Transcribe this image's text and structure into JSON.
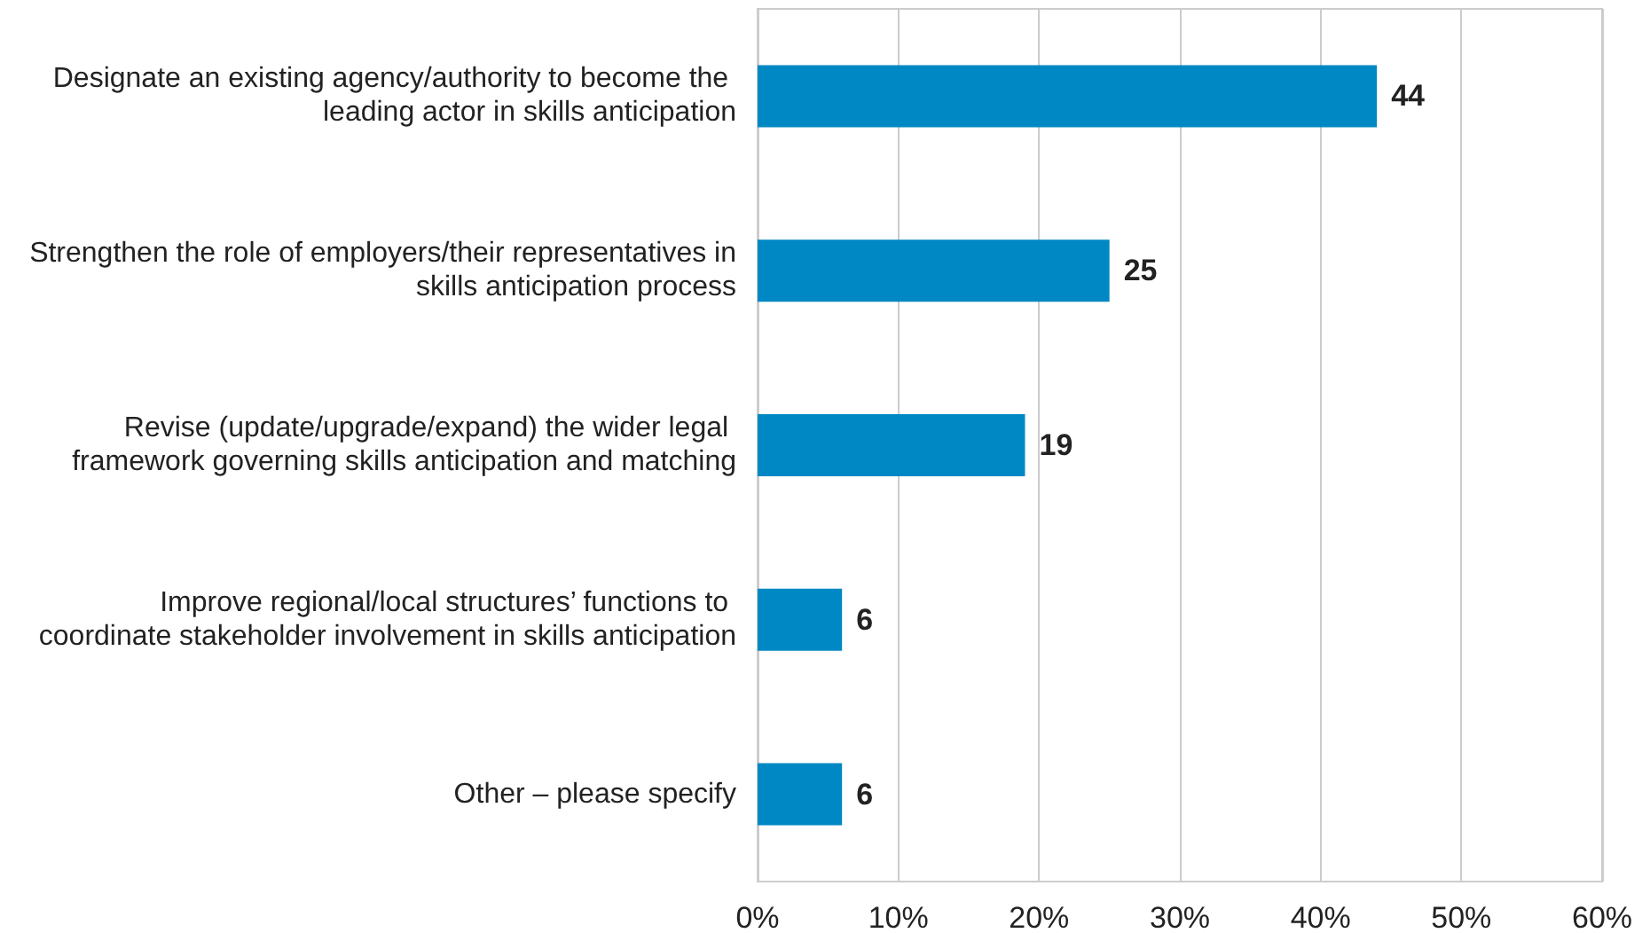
{
  "chart_data": {
    "type": "bar",
    "orientation": "horizontal",
    "categories": [
      "Designate an existing agency/authority to become the leading actor in skills anticipation",
      "Strengthen the role of employers/their representatives in skills anticipation process",
      "Revise (update/upgrade/expand) the wider legal framework governing skills anticipation and matching",
      "Improve regional/local structures’ functions to coordinate stakeholder involvement in skills anticipation",
      "Other – please specify"
    ],
    "values": [
      44,
      25,
      19,
      6,
      6
    ],
    "color": "#0088c4",
    "data_labels": true,
    "xlim": [
      0,
      60
    ],
    "xticks": [
      {
        "value": 0,
        "label": "0%"
      },
      {
        "value": 10,
        "label": "10%"
      },
      {
        "value": 20,
        "label": "20%"
      },
      {
        "value": 30,
        "label": "30%"
      },
      {
        "value": 40,
        "label": "40%"
      },
      {
        "value": 50,
        "label": "50%"
      },
      {
        "value": 60,
        "label": "60%"
      }
    ],
    "grid": "x"
  }
}
